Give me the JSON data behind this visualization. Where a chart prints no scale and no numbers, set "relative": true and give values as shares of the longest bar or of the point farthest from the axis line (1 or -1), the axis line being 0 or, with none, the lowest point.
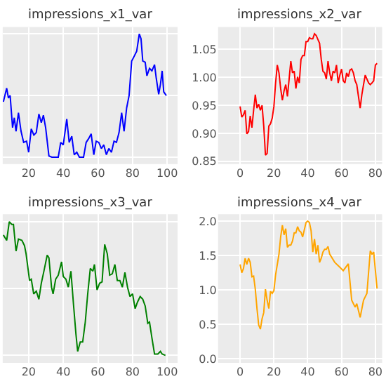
{
  "chart_data": [
    {
      "type": "line",
      "title": "impressions_x1_var",
      "relative": true,
      "xlim": [
        5,
        106
      ],
      "xticks": [
        20,
        40,
        60,
        80,
        100
      ],
      "grid": true,
      "tick_labels": "x",
      "x": [
        5.4,
        7.3,
        8.3,
        9.3,
        10.7,
        11.7,
        12.7,
        14.1,
        15.6,
        17.1,
        18.8,
        20,
        21.5,
        23,
        24.4,
        25.9,
        27.3,
        28.5,
        29.8,
        31.7,
        33.4,
        37.1,
        38.5,
        40,
        42,
        43.4,
        44.9,
        46.3,
        47.8,
        49.3,
        51.7,
        53.2,
        54.6,
        56.1,
        57.6,
        59,
        60.5,
        62,
        63.4,
        64.9,
        66.3,
        67.8,
        69.3,
        70.7,
        72.2,
        73.7,
        75.1,
        76.6,
        78,
        79.5,
        81,
        82.4,
        83.9,
        84.9,
        85.9,
        87.3,
        88.3,
        89.8,
        91.2,
        92.7,
        93.7,
        95.1,
        96.1,
        97.1,
        98,
        99.5
      ],
      "series": [
        {
          "color": "#0000ff",
          "values": [
            0.45,
            0.56,
            0.48,
            0.5,
            0.24,
            0.32,
            0.21,
            0.36,
            0.21,
            0.12,
            0.13,
            0.04,
            0.23,
            0.18,
            0.2,
            0.35,
            0.28,
            0.34,
            0.24,
            0.01,
            0,
            0,
            0.12,
            0.1,
            0.31,
            0.12,
            0.17,
            0.02,
            0.04,
            0,
            0,
            0.12,
            0.15,
            0.19,
            0.02,
            0.13,
            0.12,
            0.07,
            0.1,
            0.02,
            0.07,
            0.04,
            0.13,
            0.12,
            0.2,
            0.36,
            0.21,
            0.4,
            0.5,
            0.78,
            0.82,
            0.86,
            1,
            0.96,
            0.78,
            0.77,
            0.66,
            0.72,
            0.7,
            0.75,
            0.64,
            0.51,
            0.59,
            0.7,
            0.53,
            0.5
          ]
        }
      ]
    },
    {
      "type": "line",
      "title": "impressions_x2_var",
      "xlim": [
        -13,
        84
      ],
      "ylim": [
        0.845,
        1.09
      ],
      "xticks": [
        0,
        20,
        40,
        60,
        80
      ],
      "yticks": [
        {
          "value": 0.85,
          "label": "0.85"
        },
        {
          "value": 0.9,
          "label": "0.90"
        },
        {
          "value": 0.95,
          "label": "0.95"
        },
        {
          "value": 1.0,
          "label": "1.00"
        },
        {
          "value": 1.05,
          "label": "1.05"
        }
      ],
      "grid": true,
      "x": [
        0,
        1,
        2,
        3,
        4,
        5,
        6,
        7,
        8,
        9,
        10,
        11,
        12,
        13,
        14,
        15,
        16,
        17,
        18,
        19,
        20,
        21,
        22,
        23,
        24,
        25,
        26,
        27,
        28,
        29,
        30,
        31,
        32,
        33,
        34,
        35,
        36,
        37,
        38,
        39,
        40,
        41,
        42,
        43,
        44,
        45,
        46,
        47,
        48,
        49,
        50,
        51,
        52,
        53,
        54,
        55,
        56,
        57,
        58,
        59,
        60,
        61,
        62,
        63,
        64,
        65,
        66,
        67,
        68,
        69,
        70,
        71,
        72,
        73,
        74,
        75,
        76,
        77,
        78,
        79,
        80,
        81
      ],
      "series": [
        {
          "color": "#ff0000",
          "values": [
            0.948,
            0.929,
            0.933,
            0.941,
            0.899,
            0.903,
            0.931,
            0.91,
            0.941,
            0.969,
            0.945,
            0.952,
            0.941,
            0.95,
            0.913,
            0.861,
            0.864,
            0.913,
            0.917,
            0.927,
            0.948,
            0.99,
            1.022,
            1.008,
            0.98,
            0.959,
            0.976,
            0.987,
            0.966,
            0.997,
            1.029,
            1.008,
            1.011,
            0.98,
            1.001,
            0.99,
            1.032,
            1.039,
            1.039,
            1.064,
            1.064,
            1.071,
            1.069,
            1.069,
            1.078,
            1.075,
            1.068,
            1.061,
            1.032,
            1.011,
            1.008,
            0.997,
            1.029,
            1.008,
            0.994,
            1.011,
            1.008,
            1.022,
            0.99,
            1.004,
            1.015,
            0.994,
            0.99,
            1.008,
            1.001,
            1.013,
            1.015,
            1.008,
            0.994,
            0.987,
            0.966,
            0.945,
            0.969,
            0.987,
            1.004,
            0.997,
            0.99,
            0.987,
            0.99,
            0.994,
            1.022,
            1.025
          ]
        }
      ]
    },
    {
      "type": "line",
      "title": "impressions_x3_var",
      "relative": true,
      "xlim": [
        5,
        106
      ],
      "xticks": [
        20,
        40,
        60,
        80,
        100
      ],
      "grid": true,
      "tick_labels": "x",
      "x": [
        5.4,
        7.3,
        8.8,
        10.2,
        11.2,
        12.7,
        14.1,
        16.1,
        17.6,
        18.5,
        20.5,
        21.5,
        22.9,
        24.4,
        25.9,
        27.3,
        28.8,
        30.7,
        31.7,
        33.2,
        34.1,
        35.6,
        37.1,
        39,
        40,
        41.5,
        42.9,
        44.4,
        45.9,
        47.3,
        48.3,
        49.8,
        51.2,
        52.7,
        54.1,
        55.6,
        57.1,
        58,
        59.5,
        61,
        62.4,
        63.9,
        65.4,
        66.8,
        68.3,
        69.8,
        71.2,
        72.7,
        74.1,
        75.6,
        77.1,
        78.5,
        80,
        81.5,
        82.9,
        84.4,
        85.9,
        87.3,
        88.8,
        89.8,
        91.2,
        92.7,
        94.6,
        96.1,
        97.1,
        99
      ],
      "series": [
        {
          "color": "#008000",
          "values": [
            0.9,
            0.86,
            1,
            0.98,
            0.98,
            0.78,
            0.87,
            0.86,
            0.82,
            0.76,
            0.56,
            0.57,
            0.46,
            0.48,
            0.42,
            0.54,
            0.63,
            0.75,
            0.73,
            0.51,
            0.46,
            0.57,
            0.6,
            0.7,
            0.59,
            0.57,
            0.51,
            0.63,
            0.38,
            0.16,
            0.03,
            0.1,
            0.1,
            0.25,
            0.46,
            0.65,
            0.63,
            0.68,
            0.49,
            0.54,
            0.55,
            0.83,
            0.76,
            0.6,
            0.61,
            0.68,
            0.56,
            0.56,
            0.51,
            0.62,
            0.51,
            0.44,
            0.46,
            0.35,
            0.4,
            0.44,
            0.42,
            0.37,
            0.24,
            0.25,
            0.13,
            0.01,
            0.01,
            0.03,
            0.01,
            0
          ]
        }
      ]
    },
    {
      "type": "line",
      "title": "impressions_x4_var",
      "xlim": [
        -13,
        84
      ],
      "ylim": [
        -0.06,
        2.1
      ],
      "xticks": [
        0,
        20,
        40,
        60,
        80
      ],
      "yticks": [
        {
          "value": 0,
          "label": "0.0"
        },
        {
          "value": 0.5,
          "label": "0.5"
        },
        {
          "value": 1,
          "label": "1.0"
        },
        {
          "value": 1.5,
          "label": "1.5"
        },
        {
          "value": 2,
          "label": "2.0"
        }
      ],
      "grid": true,
      "x": [
        0,
        1,
        2,
        3,
        4,
        5,
        6,
        7,
        8,
        9,
        10,
        11,
        12,
        13,
        14,
        15,
        16,
        17,
        18,
        19,
        20,
        21,
        23,
        24,
        25,
        26,
        27,
        28,
        29,
        30,
        31,
        32,
        33,
        34,
        35,
        36,
        37,
        39,
        40,
        41,
        42,
        43,
        44,
        45,
        46,
        47,
        48,
        49,
        50,
        51,
        52,
        53,
        56,
        59,
        61,
        64,
        66,
        68,
        69,
        71,
        73,
        75,
        77,
        78,
        79,
        81
      ],
      "series": [
        {
          "color": "#ffa500",
          "values": [
            1.37,
            1.25,
            1.31,
            1.46,
            1.37,
            1.46,
            1.4,
            1.19,
            1.2,
            1.01,
            0.73,
            0.49,
            0.43,
            0.58,
            0.67,
            1.01,
            0.85,
            0.73,
            0.98,
            0.95,
            0.99,
            1.22,
            1.52,
            1.77,
            1.94,
            1.8,
            1.89,
            1.62,
            1.65,
            1.65,
            1.71,
            1.83,
            1.83,
            1.92,
            1.86,
            1.84,
            1.77,
            1.98,
            2.0,
            1.98,
            1.86,
            1.55,
            1.74,
            1.52,
            1.65,
            1.4,
            1.46,
            1.55,
            1.59,
            1.59,
            1.63,
            1.52,
            1.4,
            1.33,
            1.28,
            1.38,
            0.85,
            0.75,
            0.8,
            0.6,
            0.85,
            0.95,
            1.57,
            1.52,
            1.55,
            1.02
          ]
        }
      ]
    }
  ]
}
